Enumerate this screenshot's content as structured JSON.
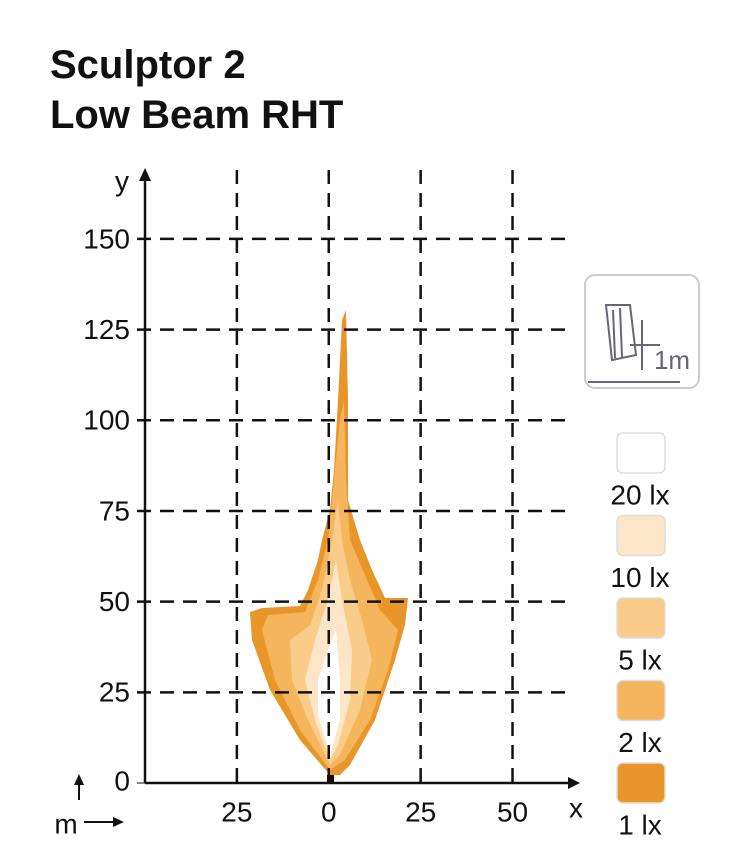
{
  "chart_data": {
    "type": "isolux",
    "title_lines": [
      "Sculptor 2",
      "Low Beam RHT"
    ],
    "x_label": "x",
    "y_label": "y",
    "unit_label": "m",
    "icon_label": "1m",
    "xlim": [
      -50,
      67
    ],
    "ylim": [
      0,
      169
    ],
    "xticks": [
      {
        "value": -25,
        "label": "25"
      },
      0,
      25,
      50
    ],
    "yticks": [
      0,
      25,
      50,
      75,
      100,
      125,
      150
    ],
    "grid": true,
    "levels": [
      {
        "value": 20,
        "label": "20 lx",
        "color": "#ffffff"
      },
      {
        "value": 10,
        "label": "10 lx",
        "color": "#fde6c8"
      },
      {
        "value": 5,
        "label": "5 lx",
        "color": "#f9cc8a"
      },
      {
        "value": 2,
        "label": "2 lx",
        "color": "#f5b55c"
      },
      {
        "value": 1,
        "label": "1 lx",
        "color": "#e8962a"
      }
    ]
  }
}
